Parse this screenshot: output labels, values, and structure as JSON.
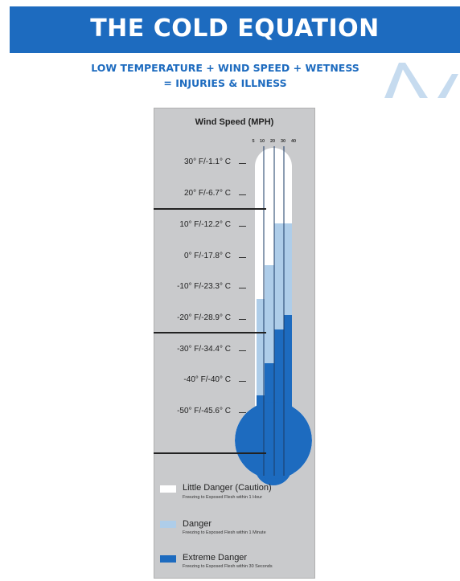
{
  "header": {
    "title": "THE COLD EQUATION"
  },
  "subtitle": {
    "line1": "LOW TEMPERATURE + WIND SPEED + WETNESS",
    "line2": "= INJURIES & ILLNESS"
  },
  "chart": {
    "wind_title": "Wind Speed (MPH)",
    "wind_ticks": [
      "5",
      "10",
      "20",
      "30",
      "40"
    ],
    "temperatures": [
      "30° F/-1.1° C",
      "20° F/-6.7° C",
      "10° F/-12.2° C",
      "0° F/-17.8° C",
      "-10° F/-23.3° C",
      "-20° F/-28.9° C",
      "-30° F/-34.4° C",
      "-40° F/-40° C",
      "-50° F/-45.6° C"
    ]
  },
  "legend": [
    {
      "label": "Little Danger (Caution)",
      "desc": "Freezing to Exposed Flesh within 1 Hour",
      "color": "#ffffff"
    },
    {
      "label": "Danger",
      "desc": "Freezing to Exposed Flesh within 1 Minute",
      "color": "#aecde9"
    },
    {
      "label": "Extreme Danger",
      "desc": "Freezing to Exposed Flesh within 30 Seconds",
      "color": "#1d6bbf"
    }
  ],
  "colors": {
    "brand_blue": "#1d6bbf",
    "light_blue": "#aecde9",
    "panel_gray": "#c9cacc"
  }
}
